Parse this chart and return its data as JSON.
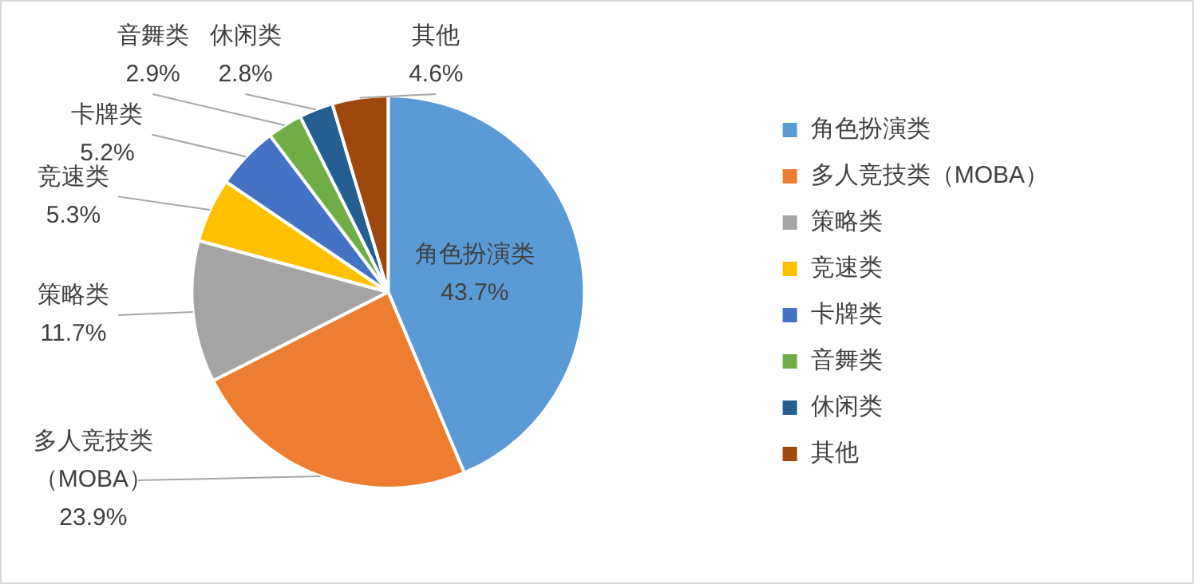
{
  "chart_data": {
    "type": "pie",
    "categories": [
      "角色扮演类",
      "多人竞技类（MOBA）",
      "策略类",
      "竞速类",
      "卡牌类",
      "音舞类",
      "休闲类",
      "其他"
    ],
    "values": [
      43.7,
      23.9,
      11.7,
      5.3,
      5.2,
      2.9,
      2.8,
      4.6
    ],
    "colors": [
      "#5b9bd5",
      "#ed7d31",
      "#a5a5a5",
      "#ffc000",
      "#4472c4",
      "#70ad47",
      "#255e91",
      "#9e480e"
    ],
    "value_labels": [
      "43.7%",
      "23.9%",
      "11.7%",
      "5.3%",
      "5.2%",
      "2.9%",
      "2.8%",
      "4.6%"
    ],
    "legend": "right"
  }
}
